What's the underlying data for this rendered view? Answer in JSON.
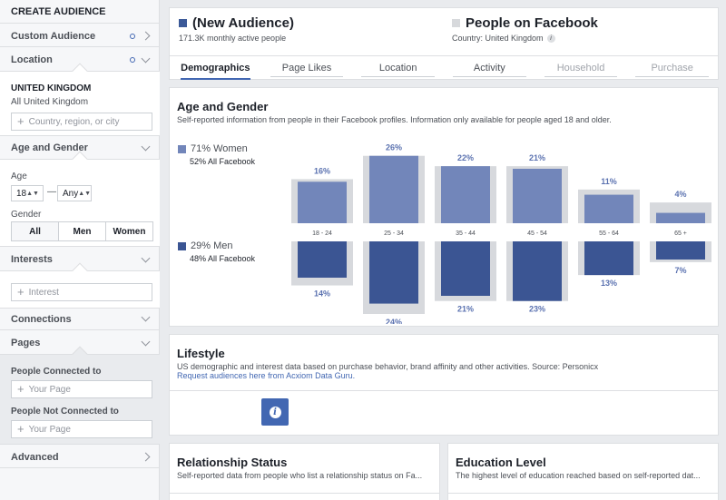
{
  "sidebar": {
    "title": "CREATE AUDIENCE",
    "custom_audience": "Custom Audience",
    "location": "Location",
    "country": "UNITED KINGDOM",
    "country_sub": "All United Kingdom",
    "location_placeholder": "Country, region, or city",
    "age_gender": "Age and Gender",
    "age_label": "Age",
    "age_min": "18",
    "age_max": "Any",
    "age_dash": "—",
    "gender_label": "Gender",
    "gender_options": [
      "All",
      "Men",
      "Women"
    ],
    "interests": "Interests",
    "interest_placeholder": "Interest",
    "connections": "Connections",
    "pages": "Pages",
    "people_connected": "People Connected to",
    "people_not_connected": "People Not Connected to",
    "page_placeholder": "Your Page",
    "advanced": "Advanced"
  },
  "header": {
    "audience_name": "(New Audience)",
    "audience_sub": "171.3K monthly active people",
    "compare_name": "People on Facebook",
    "compare_sub": "Country: United Kingdom",
    "colors": {
      "audience": "#3b5998",
      "compare": "#d7d9dc"
    }
  },
  "tabs": [
    "Demographics",
    "Page Likes",
    "Location",
    "Activity",
    "Household",
    "Purchase"
  ],
  "age_gender": {
    "title": "Age and Gender",
    "subtitle": "Self-reported information from people in their Facebook profiles. Information only available for people aged 18 and older.",
    "women_label": "71% Women",
    "women_sub": "52% All Facebook",
    "men_label": "29% Men",
    "men_sub": "48% All Facebook",
    "colors": {
      "women": "#7286ba",
      "men": "#3b5593",
      "facebook": "#d7d9dd"
    }
  },
  "chart_data": {
    "type": "bar",
    "categories": [
      "18 - 24",
      "25 - 34",
      "35 - 44",
      "45 - 54",
      "55 - 64",
      "65 +"
    ],
    "series": [
      {
        "name": "Women",
        "values": [
          16,
          26,
          22,
          21,
          11,
          4
        ],
        "labels": [
          "16%",
          "26%",
          "22%",
          "21%",
          "11%",
          "4%"
        ]
      },
      {
        "name": "Men",
        "values": [
          14,
          24,
          21,
          23,
          13,
          7
        ],
        "labels": [
          "14%",
          "24%",
          "21%",
          "23%",
          "13%",
          "7%"
        ]
      }
    ],
    "facebook_women": [
      17,
      26,
      22,
      22,
      13,
      8
    ],
    "facebook_men": [
      17,
      28,
      23,
      23,
      13,
      8
    ],
    "ylim": [
      0,
      28
    ]
  },
  "lifestyle": {
    "title": "Lifestyle",
    "line1": "US demographic and interest data based on purchase behavior, brand affinity and other activities. Source: Personicx",
    "line2": "Request audiences here from Acxiom Data Guru."
  },
  "relationship": {
    "title": "Relationship Status",
    "subtitle": "Self-reported data from people who list a relationship status on Fa..."
  },
  "education": {
    "title": "Education Level",
    "subtitle": "The highest level of education reached based on self-reported dat..."
  }
}
